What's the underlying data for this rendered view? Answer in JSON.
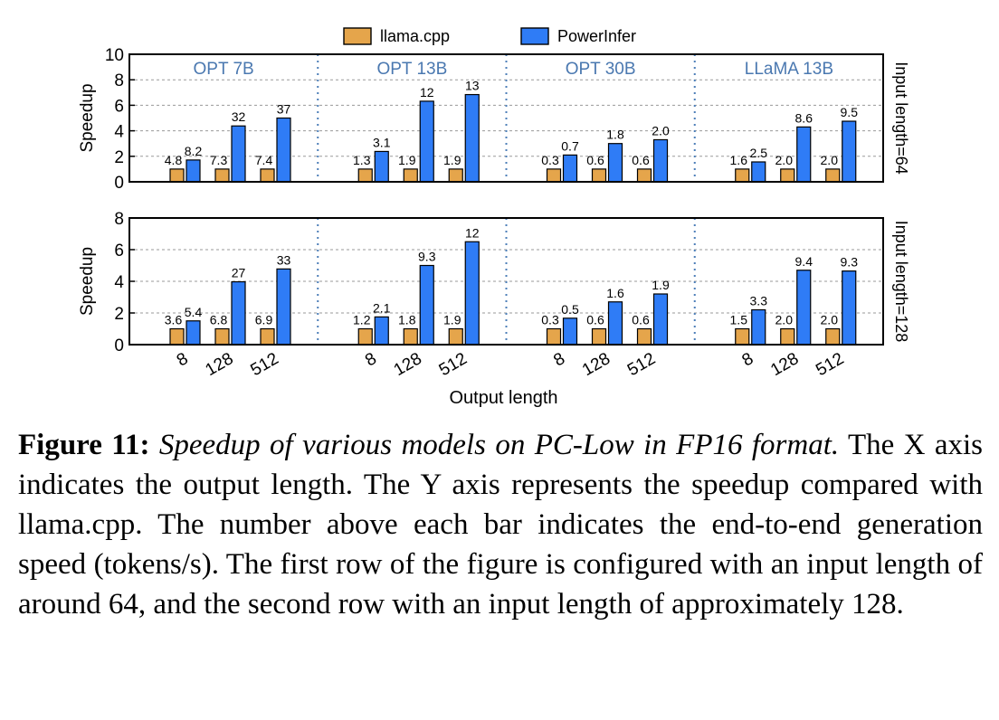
{
  "chart_data": {
    "type": "bar",
    "legend": {
      "entries": [
        {
          "name": "llama.cpp",
          "color": "#e5a54b"
        },
        {
          "name": "PowerInfer",
          "color": "#2f7cf6"
        }
      ],
      "placement": "top-center"
    },
    "xlabel": "Output length",
    "ylabel": "Speedup",
    "categories": [
      "8",
      "128",
      "512"
    ],
    "models": [
      "OPT 7B",
      "OPT 13B",
      "OPT 30B",
      "LLaMA 13B"
    ],
    "rows": [
      {
        "input_label": "Input length=64",
        "ylim": [
          0,
          10
        ],
        "yticks": [
          "0",
          "2",
          "4",
          "6",
          "8",
          "10"
        ],
        "panels": [
          {
            "model": "OPT 7B",
            "llama": {
              "speedup": [
                1,
                1,
                1
              ],
              "labels": [
                "4.8",
                "7.3",
                "7.4"
              ]
            },
            "powerinfer": {
              "speedup": [
                1.71,
                4.38,
                5.0
              ],
              "labels": [
                "8.2",
                "32",
                "37"
              ]
            }
          },
          {
            "model": "OPT 13B",
            "llama": {
              "speedup": [
                1,
                1,
                1
              ],
              "labels": [
                "1.3",
                "1.9",
                "1.9"
              ]
            },
            "powerinfer": {
              "speedup": [
                2.38,
                6.32,
                6.84
              ],
              "labels": [
                "3.1",
                "12",
                "13"
              ]
            }
          },
          {
            "model": "OPT 30B",
            "llama": {
              "speedup": [
                1,
                1,
                1
              ],
              "labels": [
                "0.3",
                "0.6",
                "0.6"
              ]
            },
            "powerinfer": {
              "speedup": [
                2.1,
                3.0,
                3.3
              ],
              "labels": [
                "0.7",
                "1.8",
                "2.0"
              ]
            }
          },
          {
            "model": "LLaMA 13B",
            "llama": {
              "speedup": [
                1,
                1,
                1
              ],
              "labels": [
                "1.6",
                "2.0",
                "2.0"
              ]
            },
            "powerinfer": {
              "speedup": [
                1.56,
                4.3,
                4.75
              ],
              "labels": [
                "2.5",
                "8.6",
                "9.5"
              ]
            }
          }
        ]
      },
      {
        "input_label": "Input length=128",
        "ylim": [
          0,
          8
        ],
        "yticks": [
          "0",
          "2",
          "4",
          "6",
          "8"
        ],
        "panels": [
          {
            "model": "OPT 7B",
            "llama": {
              "speedup": [
                1,
                1,
                1
              ],
              "labels": [
                "3.6",
                "6.8",
                "6.9"
              ]
            },
            "powerinfer": {
              "speedup": [
                1.5,
                3.97,
                4.78
              ],
              "labels": [
                "5.4",
                "27",
                "33"
              ]
            }
          },
          {
            "model": "OPT 13B",
            "llama": {
              "speedup": [
                1,
                1,
                1
              ],
              "labels": [
                "1.2",
                "1.8",
                "1.9"
              ]
            },
            "powerinfer": {
              "speedup": [
                1.75,
                5.0,
                6.5
              ],
              "labels": [
                "2.1",
                "9.3",
                "12"
              ]
            }
          },
          {
            "model": "OPT 30B",
            "llama": {
              "speedup": [
                1,
                1,
                1
              ],
              "labels": [
                "0.3",
                "0.6",
                "0.6"
              ]
            },
            "powerinfer": {
              "speedup": [
                1.67,
                2.7,
                3.2
              ],
              "labels": [
                "0.5",
                "1.6",
                "1.9"
              ]
            }
          },
          {
            "model": "LLaMA 13B",
            "llama": {
              "speedup": [
                1,
                1,
                1
              ],
              "labels": [
                "1.5",
                "2.0",
                "2.0"
              ]
            },
            "powerinfer": {
              "speedup": [
                2.2,
                4.7,
                4.65
              ],
              "labels": [
                "3.3",
                "9.4",
                "9.3"
              ]
            }
          }
        ]
      }
    ]
  },
  "caption": {
    "label": "Figure 11:",
    "title": "Speedup of various models on PC-Low in FP16 format.",
    "body": "The X axis indicates the output length. The Y axis represents the speedup compared with llama.cpp. The number above each bar indicates the end-to-end generation speed (tokens/s). The first row of the figure is configured with an input length of around 64, and the second row with an input length of approximately 128."
  }
}
